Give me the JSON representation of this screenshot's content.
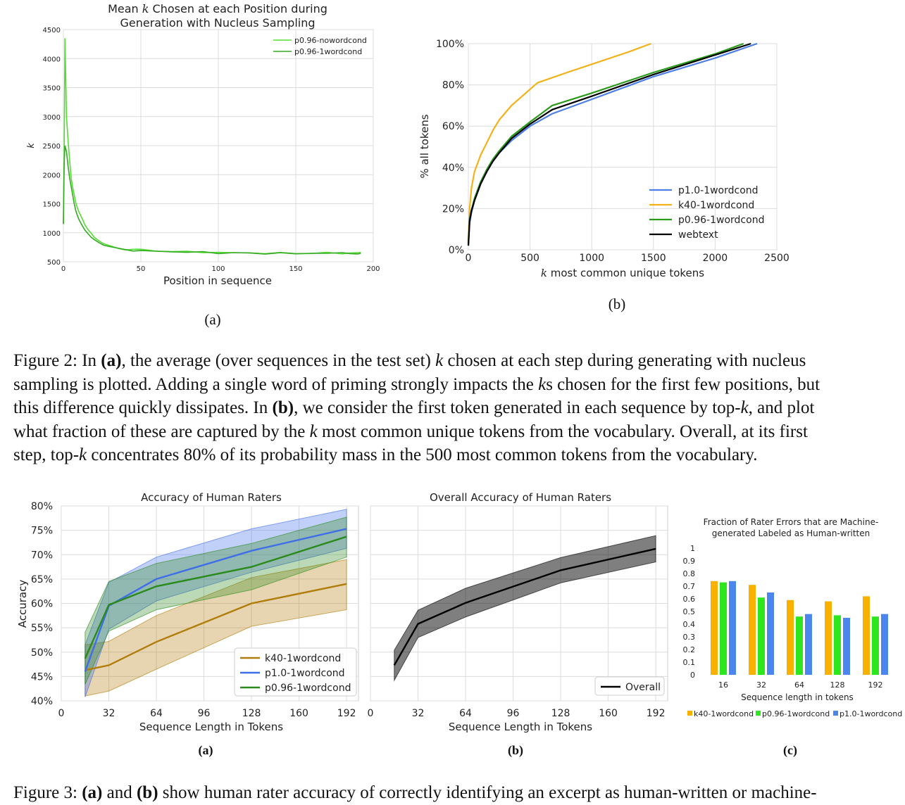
{
  "figure2": {
    "panel_a": {
      "sublabel": "(a)",
      "chart_data": {
        "type": "line",
        "title_line1_pre": "Mean ",
        "title_line1_k": "k",
        "title_line1_post": " Chosen at each Position during",
        "title_line2": "Generation with Nucleus Sampling",
        "xlabel": "Position in sequence",
        "ylabel": "k",
        "xlim": [
          0,
          200
        ],
        "ylim": [
          500,
          4500
        ],
        "xticks": [
          "0",
          "50",
          "100",
          "150",
          "200"
        ],
        "yticks": [
          "500",
          "1000",
          "1500",
          "2000",
          "2500",
          "3000",
          "3500",
          "4000",
          "4500"
        ],
        "grid": true,
        "legend_position": "top-right",
        "series": [
          {
            "name": "p0.96-nowordcond",
            "color": "#55dd33",
            "points": [
              [
                0,
                1150
              ],
              [
                0.5,
                2300
              ],
              [
                1,
                4350
              ],
              [
                1.5,
                3700
              ],
              [
                2,
                3000
              ],
              [
                3,
                2600
              ],
              [
                4,
                2250
              ],
              [
                5,
                1950
              ],
              [
                6,
                1780
              ],
              [
                7,
                1650
              ],
              [
                8,
                1520
              ],
              [
                9,
                1430
              ],
              [
                10,
                1360
              ],
              [
                12,
                1250
              ],
              [
                14,
                1130
              ],
              [
                16,
                1050
              ],
              [
                18,
                990
              ],
              [
                20,
                920
              ],
              [
                23,
                860
              ],
              [
                26,
                820
              ],
              [
                30,
                770
              ],
              [
                35,
                740
              ],
              [
                40,
                720
              ],
              [
                45,
                710
              ],
              [
                50,
                700
              ],
              [
                60,
                690
              ],
              [
                70,
                680
              ],
              [
                80,
                670
              ],
              [
                90,
                665
              ],
              [
                100,
                660
              ],
              [
                110,
                655
              ],
              [
                120,
                650
              ],
              [
                130,
                650
              ],
              [
                140,
                648
              ],
              [
                150,
                645
              ],
              [
                160,
                650
              ],
              [
                170,
                648
              ],
              [
                180,
                650
              ],
              [
                185,
                660
              ],
              [
                190,
                650
              ],
              [
                192,
                655
              ]
            ]
          },
          {
            "name": "p0.96-1wordcond",
            "color": "#33aa22",
            "points": [
              [
                0,
                1150
              ],
              [
                0.5,
                2200
              ],
              [
                1,
                2500
              ],
              [
                2,
                2400
              ],
              [
                3,
                2150
              ],
              [
                4,
                1950
              ],
              [
                5,
                1800
              ],
              [
                6,
                1650
              ],
              [
                7,
                1500
              ],
              [
                8,
                1380
              ],
              [
                9,
                1300
              ],
              [
                10,
                1230
              ],
              [
                12,
                1130
              ],
              [
                14,
                1040
              ],
              [
                16,
                980
              ],
              [
                18,
                920
              ],
              [
                20,
                880
              ],
              [
                23,
                830
              ],
              [
                26,
                790
              ],
              [
                30,
                760
              ],
              [
                35,
                730
              ],
              [
                40,
                715
              ],
              [
                45,
                700
              ],
              [
                50,
                690
              ],
              [
                60,
                680
              ],
              [
                70,
                672
              ],
              [
                80,
                668
              ],
              [
                90,
                662
              ],
              [
                100,
                655
              ],
              [
                110,
                650
              ],
              [
                120,
                648
              ],
              [
                130,
                645
              ],
              [
                140,
                645
              ],
              [
                150,
                642
              ],
              [
                160,
                645
              ],
              [
                170,
                648
              ],
              [
                180,
                650
              ],
              [
                185,
                655
              ],
              [
                190,
                645
              ],
              [
                192,
                650
              ]
            ]
          }
        ]
      }
    },
    "panel_b": {
      "sublabel": "(b)",
      "chart_data": {
        "type": "line",
        "title": "",
        "xlabel_k": "k",
        "xlabel_rest": " most common unique tokens",
        "ylabel": "% all tokens",
        "xlim": [
          0,
          2500
        ],
        "ylim": [
          0,
          100
        ],
        "xticks": [
          "0",
          "500",
          "1000",
          "1500",
          "2000",
          "2500"
        ],
        "yticks": [
          "0%",
          "20%",
          "40%",
          "60%",
          "80%",
          "100%"
        ],
        "grid": true,
        "legend_position": "bottom-right",
        "series": [
          {
            "name": "p1.0-1wordcond",
            "color": "#4c7ee8",
            "points": [
              [
                0,
                2
              ],
              [
                10,
                13
              ],
              [
                25,
                18
              ],
              [
                50,
                24
              ],
              [
                100,
                32
              ],
              [
                150,
                38
              ],
              [
                200,
                43
              ],
              [
                250,
                47
              ],
              [
                350,
                53
              ],
              [
                500,
                60
              ],
              [
                680,
                66
              ],
              [
                1000,
                73
              ],
              [
                1500,
                84
              ],
              [
                2000,
                93
              ],
              [
                2340,
                100
              ]
            ]
          },
          {
            "name": "k40-1wordcond",
            "color": "#f3b21a",
            "points": [
              [
                0,
                4
              ],
              [
                10,
                20
              ],
              [
                25,
                30
              ],
              [
                50,
                38
              ],
              [
                100,
                46
              ],
              [
                150,
                52
              ],
              [
                200,
                58
              ],
              [
                250,
                63
              ],
              [
                350,
                70
              ],
              [
                560,
                81
              ],
              [
                800,
                86
              ],
              [
                1000,
                90
              ],
              [
                1300,
                96
              ],
              [
                1480,
                100
              ]
            ]
          },
          {
            "name": "p0.96-1wordcond",
            "color": "#2a9a1b",
            "points": [
              [
                0,
                3
              ],
              [
                10,
                15
              ],
              [
                25,
                19
              ],
              [
                50,
                25
              ],
              [
                100,
                33
              ],
              [
                150,
                39
              ],
              [
                200,
                44
              ],
              [
                250,
                48
              ],
              [
                350,
                55
              ],
              [
                500,
                62
              ],
              [
                680,
                70
              ],
              [
                1000,
                76
              ],
              [
                1500,
                86
              ],
              [
                2000,
                95
              ],
              [
                2230,
                100
              ]
            ]
          },
          {
            "name": "webtext",
            "color": "#000000",
            "points": [
              [
                0,
                2
              ],
              [
                10,
                14
              ],
              [
                25,
                19
              ],
              [
                50,
                24
              ],
              [
                100,
                32
              ],
              [
                150,
                38
              ],
              [
                200,
                43
              ],
              [
                250,
                47
              ],
              [
                350,
                54
              ],
              [
                500,
                61
              ],
              [
                680,
                68
              ],
              [
                1000,
                74.5
              ],
              [
                1500,
                85
              ],
              [
                2000,
                94.5
              ],
              [
                2290,
                100
              ]
            ]
          }
        ]
      }
    },
    "caption": {
      "label": "Figure 2:",
      "line1_a": "In ",
      "line1_b": "(a)",
      "line1_c": ", the average (over sequences in the test set) ",
      "line1_k": "k",
      "line1_d": " chosen at each step during generating with nucleus",
      "line2_a": "sampling is plotted. Adding a single word of priming strongly impacts the ",
      "line2_k": "k",
      "line2_b": "s chosen for the first few positions, but",
      "line3_a": "this difference quickly dissipates. In ",
      "line3_b": "(b)",
      "line3_c": ", we consider the first token generated in each sequence by top-",
      "line3_k": "k",
      "line3_d": ", and plot",
      "line4_a": "what fraction of these are captured by the ",
      "line4_k": "k",
      "line4_b": " most common unique tokens from the vocabulary. Overall, at its first",
      "line5_a": "step, top-",
      "line5_k": "k",
      "line5_b": " concentrates 80% of its probability mass in the 500 most common tokens from the vocabulary."
    }
  },
  "figure3": {
    "panel_a": {
      "sublabel": "(a)",
      "chart_data": {
        "type": "line",
        "title": "Accuracy of Human Raters",
        "xlabel": "Sequence Length in Tokens",
        "ylabel": "Accuracy",
        "xlim": [
          0,
          200
        ],
        "ylim": [
          40,
          80
        ],
        "xticks": [
          "0",
          "32",
          "64",
          "96",
          "128",
          "160",
          "192"
        ],
        "yticks": [
          "40%",
          "45%",
          "50%",
          "55%",
          "60%",
          "65%",
          "70%",
          "75%",
          "80%"
        ],
        "grid": true,
        "legend_position": "bottom-right",
        "x": [
          16,
          32,
          64,
          128,
          192
        ],
        "series": [
          {
            "name": "k40-1wordcond",
            "color": "#b07d0a",
            "values": [
              46.3,
              47.3,
              52.1,
              60.0,
              64.0
            ],
            "lower": [
              41.0,
              42.0,
              46.5,
              55.3,
              58.7
            ],
            "upper": [
              51.5,
              52.2,
              57.5,
              65.3,
              69.0
            ]
          },
          {
            "name": "p1.0-1wordcond",
            "color": "#3f6ee8",
            "values": [
              46.0,
              59.5,
              65.0,
              70.8,
              75.3
            ],
            "lower": [
              40.8,
              54.7,
              60.5,
              66.4,
              71.3
            ],
            "upper": [
              51.5,
              64.3,
              69.5,
              75.3,
              79.3
            ]
          },
          {
            "name": "p0.96-1wordcond",
            "color": "#2a8a1b",
            "values": [
              48.7,
              59.7,
              63.5,
              67.5,
              73.7
            ],
            "lower": [
              43.4,
              54.3,
              58.7,
              62.8,
              69.5
            ],
            "upper": [
              54.1,
              64.5,
              68.2,
              72.3,
              77.7
            ]
          }
        ]
      }
    },
    "panel_b": {
      "sublabel": "(b)",
      "chart_data": {
        "type": "line",
        "title": "Overall Accuracy of Human Raters",
        "xlabel": "Sequence Length in Tokens",
        "ylabel": "",
        "xlim": [
          0,
          200
        ],
        "ylim": [
          40,
          80
        ],
        "xticks": [
          "0",
          "32",
          "64",
          "96",
          "128",
          "160",
          "192"
        ],
        "grid": true,
        "legend_position": "bottom-right",
        "x": [
          16,
          32,
          64,
          128,
          192
        ],
        "series": [
          {
            "name": "Overall",
            "color": "#000000",
            "values": [
              47.3,
              55.8,
              60.1,
              66.8,
              71.2
            ],
            "lower": [
              44.2,
              53.0,
              57.2,
              64.2,
              68.5
            ],
            "upper": [
              50.4,
              58.6,
              63.1,
              69.4,
              73.9
            ]
          }
        ]
      }
    },
    "panel_c": {
      "sublabel": "(c)",
      "chart_data": {
        "type": "bar",
        "title_line1": "Fraction of Rater Errors that are Machine-",
        "title_line2": "generated Labeled as Human-written",
        "xlabel": "Sequence length in tokens",
        "ylabel": "",
        "ylim": [
          0,
          1
        ],
        "yticks": [
          "0",
          "0.1",
          "0.2",
          "0.3",
          "0.4",
          "0.5",
          "0.6",
          "0.7",
          "0.8",
          "0.9",
          "1"
        ],
        "categories": [
          "16",
          "32",
          "64",
          "128",
          "192"
        ],
        "grid": false,
        "legend_position": "bottom",
        "series": [
          {
            "name": "k40-1wordcond",
            "color": "#f9b100",
            "values": [
              0.74,
              0.71,
              0.59,
              0.58,
              0.62
            ]
          },
          {
            "name": "p0.96-1wordcond",
            "color": "#2ee61e",
            "values": [
              0.73,
              0.61,
              0.46,
              0.47,
              0.46
            ]
          },
          {
            "name": "p1.0-1wordcond",
            "color": "#4a86ee",
            "values": [
              0.74,
              0.65,
              0.48,
              0.45,
              0.48
            ]
          }
        ]
      }
    },
    "caption": {
      "label": "Figure 3:",
      "part_a": "(a)",
      "text_1": " and ",
      "part_b": "(b)",
      "text_2": " show human rater accuracy of correctly identifying an excerpt as human-written or machine-"
    }
  }
}
